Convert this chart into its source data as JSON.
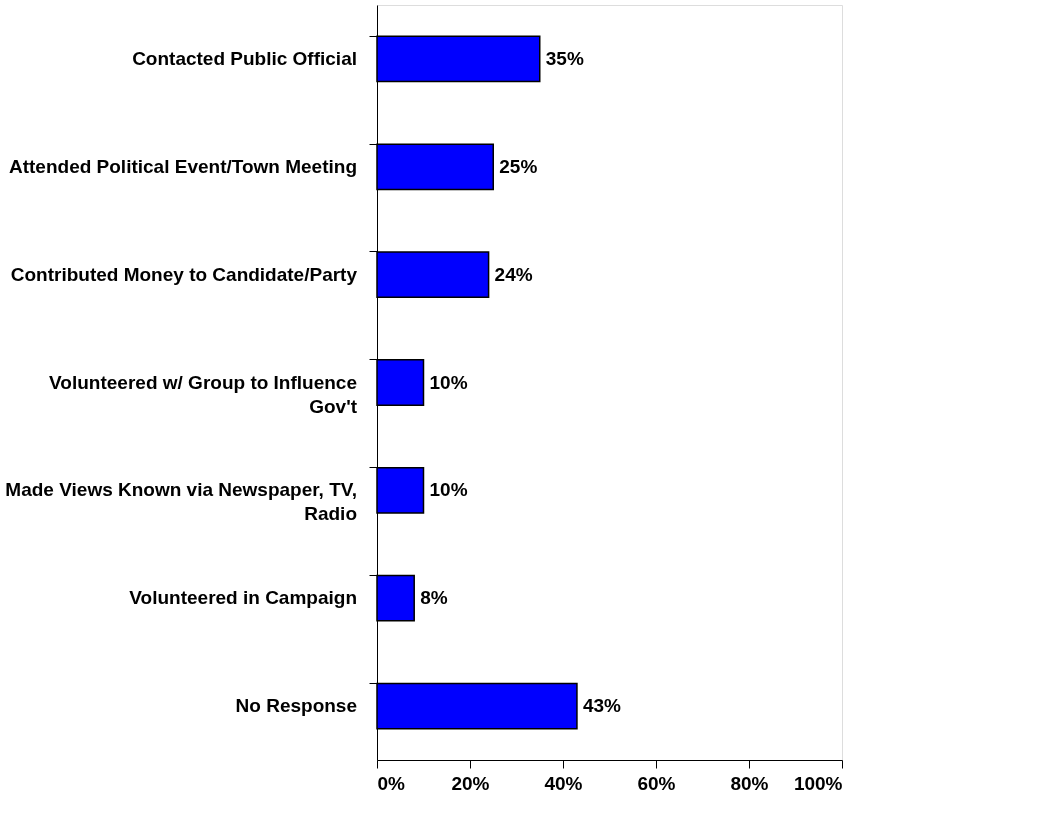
{
  "chart_data": {
    "type": "bar",
    "orientation": "horizontal",
    "categories": [
      "Contacted Public Official",
      "Attended Political Event/Town Meeting",
      "Contributed Money to Candidate/Party",
      "Volunteered w/ Group to Influence Gov't",
      "Made Views Known via Newspaper, TV, Radio",
      "Volunteered in Campaign",
      "No Response"
    ],
    "values": [
      35,
      25,
      24,
      10,
      10,
      8,
      43
    ],
    "value_labels": [
      "35%",
      "25%",
      "24%",
      "10%",
      "10%",
      "8%",
      "43%"
    ],
    "color": "#0000ff",
    "xlim": [
      0,
      100
    ],
    "xticks": [
      {
        "value": 0,
        "label": "0%"
      },
      {
        "value": 20,
        "label": "20%"
      },
      {
        "value": 40,
        "label": "40%"
      },
      {
        "value": 60,
        "label": "60%"
      },
      {
        "value": 80,
        "label": "80%"
      },
      {
        "value": 100,
        "label": "100%"
      }
    ],
    "grid": false
  }
}
